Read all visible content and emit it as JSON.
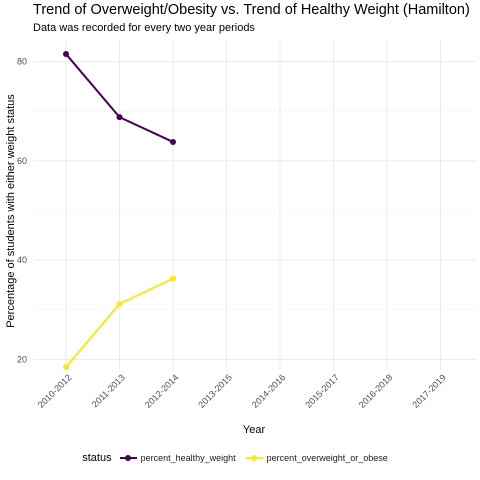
{
  "title": "Trend of Overweight/Obesity vs. Trend of Healthy Weight (Hamilton)",
  "subtitle": "Data was recorded for every two year periods",
  "legend": {
    "title": "status"
  },
  "chart_data": {
    "type": "line",
    "title": "Trend of Overweight/Obesity vs. Trend of Healthy Weight (Hamilton)",
    "subtitle": "Data was recorded for every two year periods",
    "xlabel": "Year",
    "ylabel": "Percentage of students with either weight status",
    "categories": [
      "2010-2012",
      "2011-2013",
      "2012-2014",
      "2013-2015",
      "2014-2016",
      "2015-2017",
      "2016-2018",
      "2017-2019"
    ],
    "yticks": [
      20,
      40,
      60,
      80
    ],
    "ylim": [
      16.5,
      83.5
    ],
    "grid": true,
    "legend_position": "bottom",
    "series": [
      {
        "name": "percent_healthy_weight",
        "color": "#440154",
        "values": [
          81.5,
          68.8,
          63.8,
          null,
          null,
          null,
          null,
          null
        ]
      },
      {
        "name": "percent_overweight_or_obese",
        "color": "#fde725",
        "values": [
          18.5,
          31.2,
          36.3,
          null,
          null,
          null,
          null,
          null
        ]
      }
    ]
  }
}
